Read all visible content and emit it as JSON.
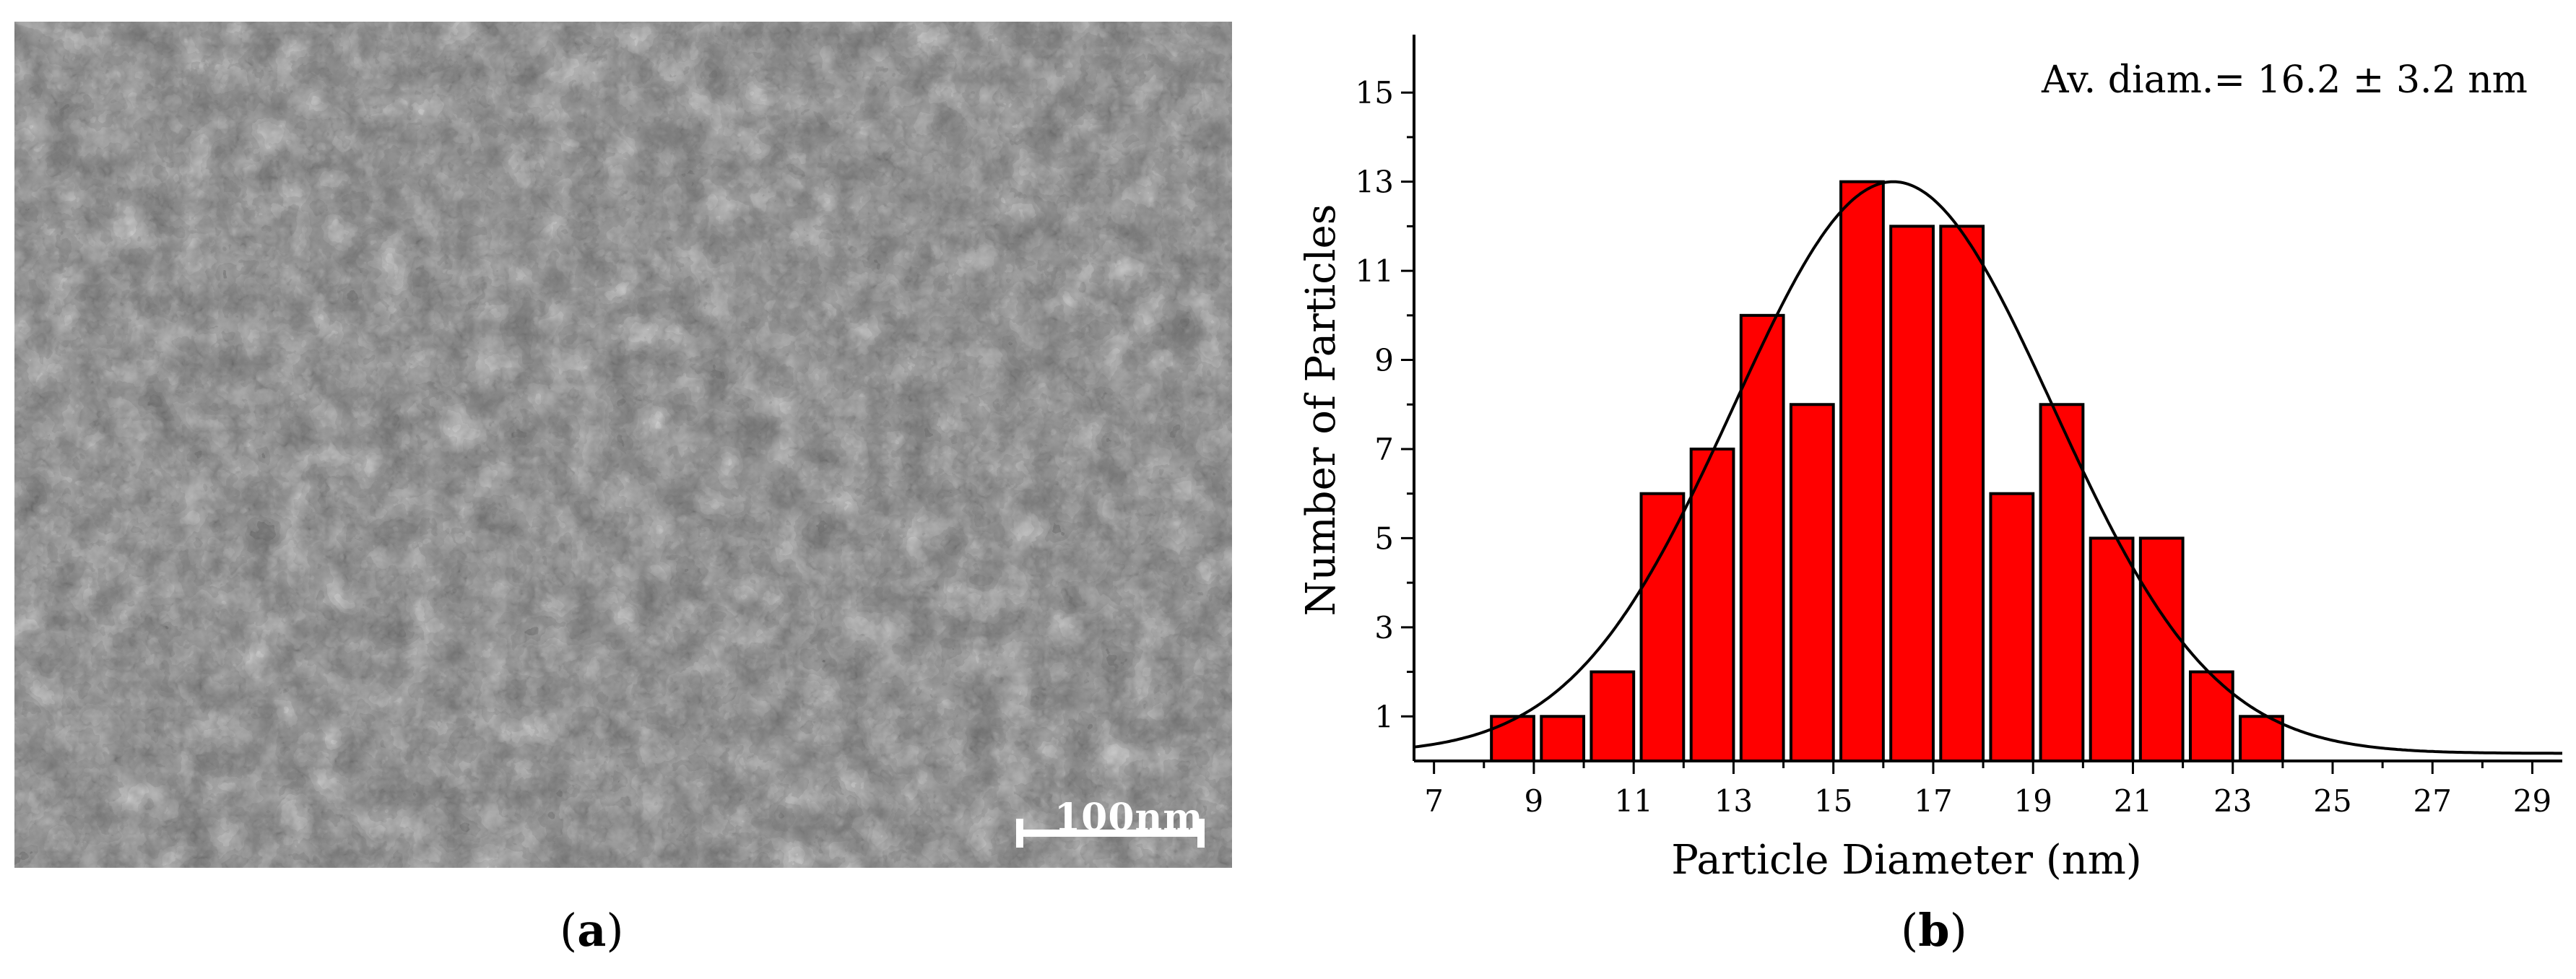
{
  "panel_a": {
    "caption_open": "(",
    "caption_letter": "a",
    "caption_close": ")",
    "scale_bar_label": "100nm",
    "image_description_name": "sem-micrograph"
  },
  "panel_b": {
    "caption_open": "(",
    "caption_letter": "b",
    "caption_close": ")"
  },
  "chart_data": {
    "type": "bar",
    "title": "",
    "annotation": "Av.  diam.= 16.2 ± 3.2 nm",
    "xlabel": "Particle Diameter (nm)",
    "ylabel": "Number of Particles",
    "xlim": [
      6.6,
      29.6
    ],
    "ylim": [
      0,
      16.3
    ],
    "xticks": [
      7,
      9,
      11,
      13,
      15,
      17,
      19,
      21,
      23,
      25,
      27,
      29
    ],
    "yticks": [
      1,
      3,
      5,
      7,
      9,
      11,
      13,
      15
    ],
    "bar_width": 0.85,
    "bar_color": "#ff0000",
    "bar_edge_color": "#000000",
    "bins": [
      9,
      10,
      11,
      12,
      13,
      14,
      15,
      16,
      17,
      18,
      19,
      20,
      21,
      22,
      23,
      24
    ],
    "values": [
      1,
      1,
      2,
      6,
      7,
      10,
      8,
      13,
      12,
      12,
      6,
      8,
      5,
      5,
      2,
      1
    ],
    "fit": {
      "type": "gaussian",
      "mean": 16.2,
      "sigma": 3.2,
      "peak": 13,
      "baseline": 0.17
    }
  }
}
